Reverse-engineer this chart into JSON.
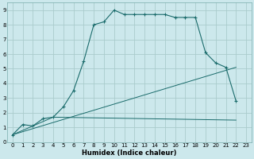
{
  "xlabel": "Humidex (Indice chaleur)",
  "background_color": "#cce8ec",
  "grid_color": "#aacccc",
  "line_color": "#1a6b6b",
  "xlim": [
    -0.5,
    23.5
  ],
  "ylim": [
    0,
    9.5
  ],
  "xticks": [
    0,
    1,
    2,
    3,
    4,
    5,
    6,
    7,
    8,
    9,
    10,
    11,
    12,
    13,
    14,
    15,
    16,
    17,
    18,
    19,
    20,
    21,
    22,
    23
  ],
  "yticks": [
    0,
    1,
    2,
    3,
    4,
    5,
    6,
    7,
    8,
    9
  ],
  "curve1_x": [
    0,
    1,
    2,
    3,
    4,
    5,
    6,
    7,
    8,
    9,
    10,
    11,
    12,
    13,
    14,
    15,
    16,
    17,
    18,
    19,
    20,
    21,
    22
  ],
  "curve1_y": [
    0.5,
    1.2,
    1.1,
    1.6,
    1.7,
    2.4,
    3.5,
    5.5,
    8.0,
    8.2,
    9.0,
    8.7,
    8.7,
    8.7,
    8.7,
    8.7,
    8.5,
    8.5,
    8.5,
    6.1,
    5.4,
    5.1,
    2.8
  ],
  "curve2_x": [
    0,
    22
  ],
  "curve2_y": [
    0.5,
    5.1
  ],
  "curve3_x": [
    0,
    4,
    22
  ],
  "curve3_y": [
    0.5,
    1.7,
    1.5
  ],
  "curve4_x": [
    4,
    22
  ],
  "curve4_y": [
    1.7,
    1.5
  ]
}
